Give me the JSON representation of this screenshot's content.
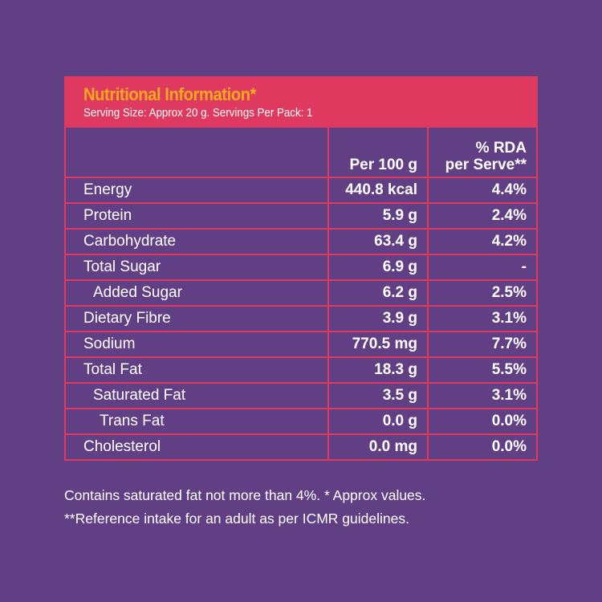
{
  "header": {
    "title": "Nutritional Information*",
    "serving": "Serving Size: Approx 20 g. Servings Per Pack: 1"
  },
  "columns": {
    "per100": "Per 100 g",
    "rda_line1": "% RDA",
    "rda_line2": "per Serve**"
  },
  "rows": [
    {
      "name": "Energy",
      "per100": "440.8 kcal",
      "rda": "4.4%",
      "indent": 0
    },
    {
      "name": "Protein",
      "per100": "5.9 g",
      "rda": "2.4%",
      "indent": 0
    },
    {
      "name": "Carbohydrate",
      "per100": "63.4 g",
      "rda": "4.2%",
      "indent": 0
    },
    {
      "name": "Total Sugar",
      "per100": "6.9 g",
      "rda": "-",
      "indent": 0
    },
    {
      "name": "Added Sugar",
      "per100": "6.2 g",
      "rda": "2.5%",
      "indent": 1
    },
    {
      "name": "Dietary Fibre",
      "per100": "3.9 g",
      "rda": "3.1%",
      "indent": 0
    },
    {
      "name": "Sodium",
      "per100": "770.5 mg",
      "rda": "7.7%",
      "indent": 0
    },
    {
      "name": "Total Fat",
      "per100": "18.3 g",
      "rda": "5.5%",
      "indent": 0
    },
    {
      "name": "Saturated Fat",
      "per100": "3.5 g",
      "rda": "3.1%",
      "indent": 1
    },
    {
      "name": "Trans Fat",
      "per100": "0.0 g",
      "rda": "0.0%",
      "indent": 2
    },
    {
      "name": "Cholesterol",
      "per100": "0.0 mg",
      "rda": "0.0%",
      "indent": 0
    }
  ],
  "footnotes": [
    "Contains saturated fat not more than 4%. * Approx values.",
    "**Reference intake for an adult as per ICMR guidelines."
  ]
}
